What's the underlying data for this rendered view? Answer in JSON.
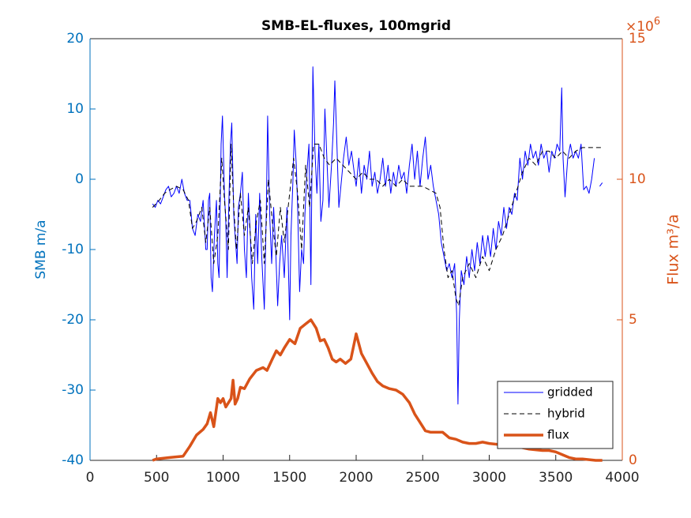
{
  "chart_data": {
    "type": "line",
    "title": "SMB-EL-fluxes, 100mgrid",
    "ylabel": "SMB m/a",
    "y2label": "Flux m³/a",
    "y2_scale": {
      "base": "×10",
      "exponent": "6"
    },
    "xlim": [
      0,
      4000
    ],
    "xticks": [
      0,
      500,
      1000,
      1500,
      2000,
      2500,
      3000,
      3500,
      4000
    ],
    "ylim": [
      -40,
      20
    ],
    "yticks": [
      -40,
      -30,
      -20,
      -10,
      0,
      10,
      20
    ],
    "y_axis_color": "#0072bd",
    "y2lim": [
      0,
      15000000
    ],
    "y2ticks": [
      {
        "value": 0,
        "label": "0"
      },
      {
        "value": 5000000,
        "label": "5"
      },
      {
        "value": 10000000,
        "label": "10"
      },
      {
        "value": 15000000,
        "label": "15"
      }
    ],
    "y2_axis_color": "#d95319",
    "grid": false,
    "legend_position": "bottom-right",
    "series": [
      {
        "name": "gridded",
        "color": "#0000ff",
        "line_style": "solid",
        "line_width": 1,
        "x": [
          470,
          490,
          510,
          530,
          550,
          570,
          590,
          610,
          630,
          650,
          670,
          690,
          710,
          730,
          750,
          770,
          790,
          810,
          830,
          850,
          870,
          880,
          890,
          900,
          910,
          920,
          935,
          950,
          960,
          970,
          985,
          995,
          1010,
          1020,
          1030,
          1045,
          1055,
          1065,
          1080,
          1090,
          1105,
          1115,
          1130,
          1145,
          1160,
          1175,
          1190,
          1205,
          1215,
          1230,
          1245,
          1260,
          1275,
          1290,
          1310,
          1325,
          1335,
          1350,
          1365,
          1380,
          1395,
          1410,
          1425,
          1440,
          1460,
          1480,
          1500,
          1510,
          1525,
          1535,
          1550,
          1560,
          1575,
          1590,
          1605,
          1615,
          1630,
          1645,
          1660,
          1675,
          1690,
          1705,
          1720,
          1735,
          1750,
          1765,
          1780,
          1795,
          1815,
          1830,
          1840,
          1855,
          1870,
          1890,
          1905,
          1925,
          1945,
          1965,
          1985,
          2000,
          2020,
          2040,
          2060,
          2080,
          2100,
          2120,
          2140,
          2160,
          2180,
          2200,
          2220,
          2240,
          2260,
          2280,
          2300,
          2320,
          2340,
          2360,
          2380,
          2400,
          2420,
          2440,
          2460,
          2480,
          2500,
          2520,
          2540,
          2560,
          2580,
          2600,
          2620,
          2640,
          2660,
          2680,
          2700,
          2720,
          2740,
          2755,
          2765,
          2775,
          2790,
          2810,
          2830,
          2850,
          2870,
          2890,
          2910,
          2930,
          2950,
          2970,
          2990,
          3010,
          3030,
          3050,
          3070,
          3090,
          3110,
          3130,
          3150,
          3170,
          3190,
          3210,
          3230,
          3250,
          3270,
          3290,
          3310,
          3330,
          3350,
          3370,
          3390,
          3410,
          3430,
          3450,
          3470,
          3490,
          3510,
          3530,
          3545,
          3555,
          3570,
          3590,
          3610,
          3630,
          3650,
          3670,
          3690,
          3710,
          3730,
          3750,
          3770,
          3790,
          3810,
          3830,
          3850
        ],
        "values": [
          -3.5,
          -4,
          -3,
          -3.5,
          -2.5,
          -1.5,
          -1,
          -2.5,
          -2,
          -1,
          -2,
          0,
          -2,
          -3,
          -3,
          -7,
          -8,
          -5,
          -6,
          -3,
          -10,
          -10,
          -3,
          -2,
          -14,
          -16,
          -8,
          -3,
          -12,
          -14,
          5,
          9,
          -2,
          -6,
          -14,
          -2,
          5,
          8,
          -5,
          -8,
          -12,
          -4,
          -2,
          1,
          -10,
          -14,
          -2,
          -8,
          -14,
          -18.5,
          -5,
          -12,
          -2,
          -11,
          -18.5,
          -4,
          9,
          -5,
          -12,
          -4,
          -10,
          -18,
          -12,
          -8,
          -14,
          -4,
          -20,
          -8,
          0,
          7,
          2,
          -4,
          -16,
          -10,
          -12,
          -5,
          1,
          5,
          -15,
          16,
          4,
          -2,
          5,
          -6,
          -3,
          10,
          3,
          -4,
          2,
          8,
          14,
          5,
          -4,
          0,
          3,
          6,
          2,
          4,
          1,
          -1,
          3,
          -2,
          2,
          0,
          4,
          -1,
          1,
          -2,
          0,
          3,
          -1,
          2,
          -2,
          1,
          -1,
          2,
          0,
          1,
          -2,
          2,
          5,
          0,
          4,
          -1,
          3,
          6,
          0,
          2,
          -1,
          -3,
          -5,
          -9,
          -11,
          -13,
          -12,
          -14,
          -12,
          -19,
          -32,
          -20,
          -13,
          -15,
          -11,
          -14,
          -10,
          -13,
          -9,
          -12,
          -8,
          -11,
          -8,
          -11,
          -7,
          -10,
          -6,
          -8,
          -4,
          -7,
          -4,
          -5,
          -2,
          -3,
          3,
          0,
          4,
          2,
          5,
          3,
          4,
          2,
          5,
          3,
          4,
          1,
          4,
          3,
          5,
          4,
          13,
          3,
          -2.5,
          3,
          5,
          3,
          4,
          3,
          5,
          -1.5,
          -1,
          -2,
          0,
          3,
          null,
          -1,
          -0.5
        ]
      },
      {
        "name": "hybrid",
        "color": "#000000",
        "line_style": "dashed",
        "line_width": 1,
        "x": [
          470,
          520,
          560,
          600,
          650,
          700,
          740,
          770,
          800,
          840,
          870,
          900,
          930,
          960,
          990,
          1010,
          1040,
          1060,
          1080,
          1100,
          1130,
          1160,
          1190,
          1220,
          1250,
          1280,
          1310,
          1340,
          1370,
          1400,
          1430,
          1460,
          1500,
          1530,
          1560,
          1590,
          1620,
          1650,
          1680,
          1720,
          1760,
          1800,
          1850,
          1900,
          1950,
          2000,
          2050,
          2100,
          2150,
          2200,
          2250,
          2300,
          2350,
          2400,
          2450,
          2500,
          2550,
          2600,
          2630,
          2660,
          2690,
          2720,
          2750,
          2770,
          2800,
          2850,
          2900,
          2950,
          3000,
          3050,
          3100,
          3150,
          3200,
          3250,
          3300,
          3350,
          3400,
          3450,
          3500,
          3550,
          3600,
          3650,
          3700,
          3750,
          3800,
          3850
        ],
        "values": [
          -4,
          -3,
          -2,
          -1.5,
          -1,
          -1.5,
          -3,
          -7,
          -6,
          -4,
          -9,
          -4,
          -12,
          -8,
          3,
          -3,
          -10,
          5,
          -4,
          -10,
          -2,
          -8,
          -4,
          -12,
          -6,
          -3,
          -12,
          0,
          -6,
          -11,
          -4,
          -9,
          -2,
          3,
          -2,
          -10,
          2,
          -4,
          5,
          5,
          3,
          2,
          3,
          2,
          1,
          0,
          1,
          0,
          0,
          -1,
          0,
          -1,
          0,
          -1,
          -1,
          -1,
          -1.5,
          -2,
          -4,
          -10,
          -14,
          -13,
          -17,
          -18,
          -14,
          -12,
          -14,
          -11,
          -13,
          -10,
          -8,
          -5,
          -2,
          1,
          3,
          2,
          4,
          4,
          3,
          4,
          3,
          4,
          4.5,
          4.5,
          4.5,
          4.5
        ]
      },
      {
        "name": "flux",
        "color": "#d95319",
        "line_style": "solid",
        "line_width": 3.5,
        "axis": "y2",
        "x": [
          470,
          500,
          600,
          700,
          750,
          800,
          850,
          880,
          905,
          930,
          960,
          980,
          1000,
          1020,
          1060,
          1075,
          1090,
          1110,
          1130,
          1160,
          1200,
          1250,
          1300,
          1330,
          1370,
          1400,
          1430,
          1460,
          1500,
          1540,
          1580,
          1620,
          1660,
          1700,
          1730,
          1760,
          1790,
          1820,
          1850,
          1880,
          1920,
          1960,
          2000,
          2040,
          2080,
          2120,
          2160,
          2200,
          2250,
          2300,
          2350,
          2400,
          2440,
          2480,
          2520,
          2560,
          2600,
          2650,
          2700,
          2750,
          2800,
          2850,
          2900,
          2950,
          3000,
          3100,
          3200,
          3300,
          3400,
          3450,
          3500,
          3550,
          3600,
          3650,
          3700,
          3800,
          3850
        ],
        "values": [
          0,
          50000,
          100000,
          150000,
          500000,
          900000,
          1100000,
          1300000,
          1700000,
          1200000,
          2200000,
          2050000,
          2200000,
          1900000,
          2200000,
          2850000,
          2000000,
          2200000,
          2600000,
          2550000,
          2900000,
          3200000,
          3300000,
          3200000,
          3600000,
          3900000,
          3750000,
          4000000,
          4300000,
          4150000,
          4700000,
          4850000,
          5000000,
          4700000,
          4250000,
          4300000,
          4000000,
          3600000,
          3500000,
          3600000,
          3450000,
          3600000,
          4500000,
          3800000,
          3450000,
          3100000,
          2800000,
          2650000,
          2550000,
          2500000,
          2350000,
          2050000,
          1650000,
          1350000,
          1050000,
          1000000,
          1000000,
          1000000,
          800000,
          750000,
          650000,
          600000,
          600000,
          650000,
          600000,
          550000,
          500000,
          400000,
          350000,
          350000,
          300000,
          200000,
          100000,
          50000,
          50000,
          0,
          0
        ]
      }
    ]
  }
}
